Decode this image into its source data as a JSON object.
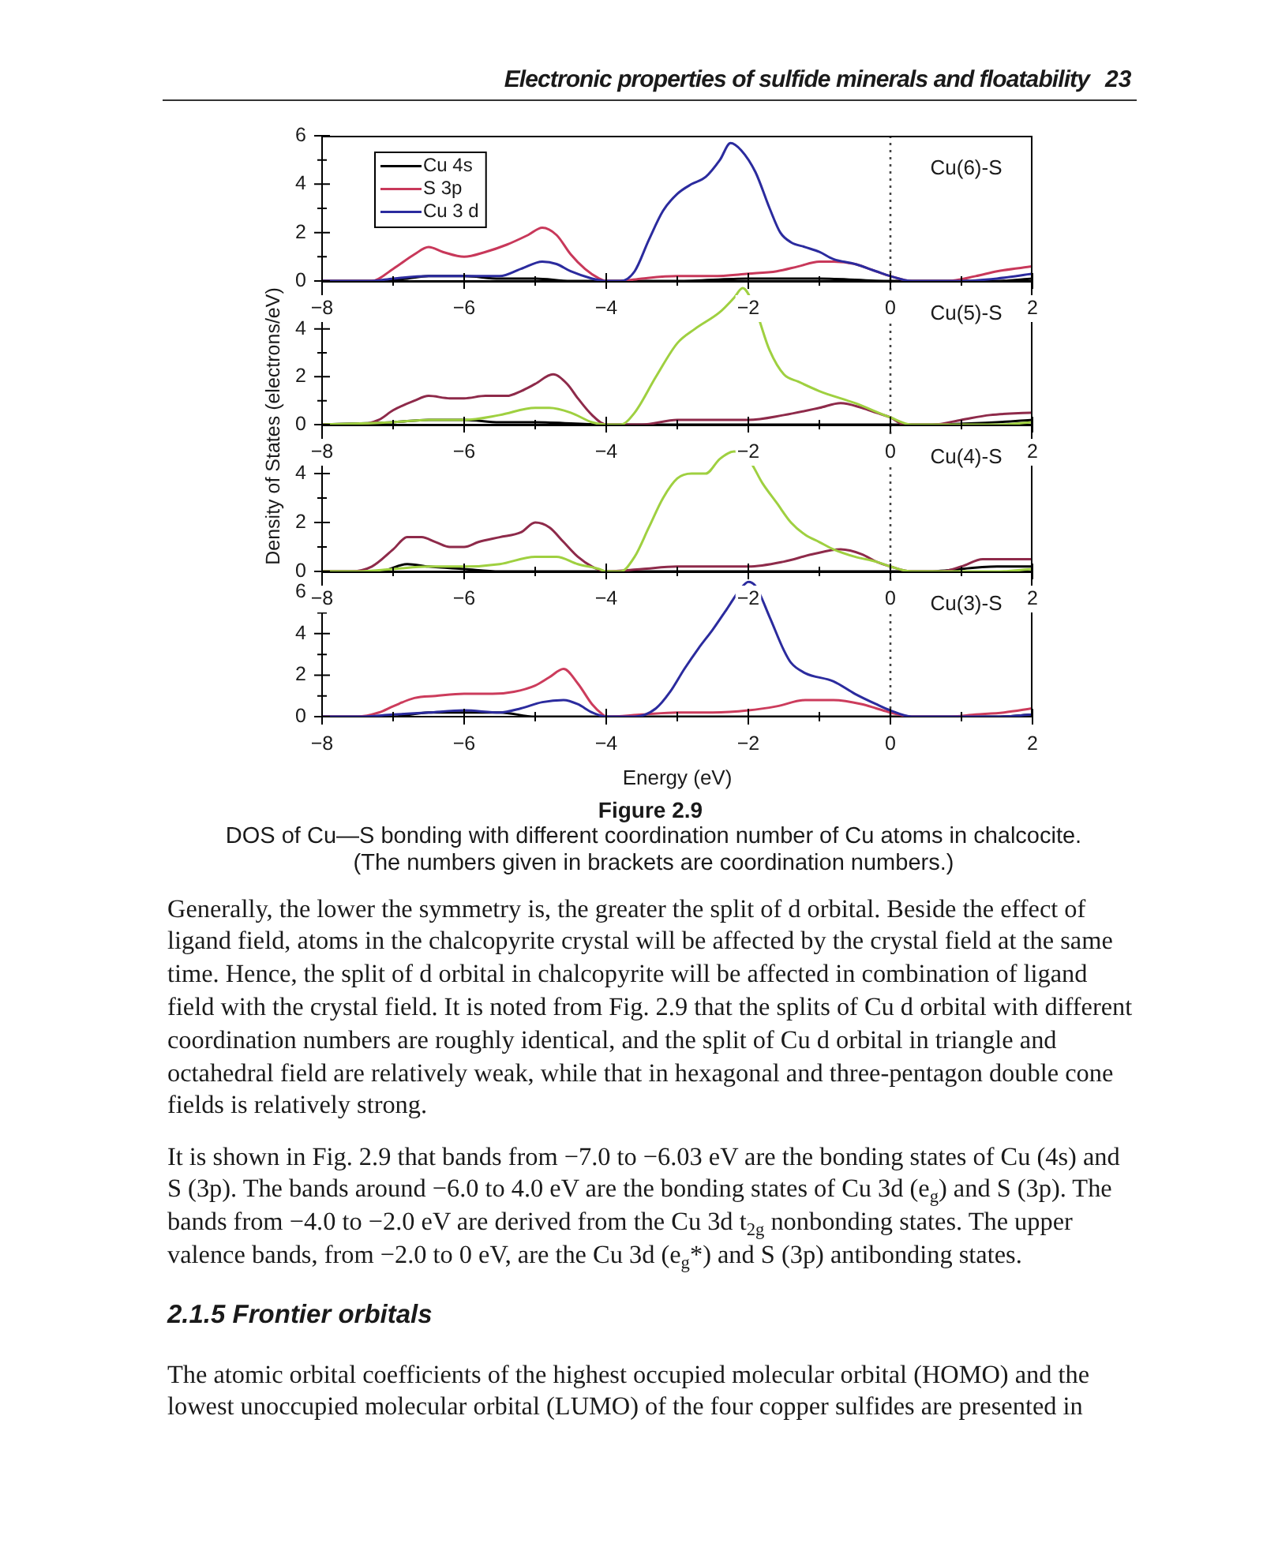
{
  "chart_data": [
    {
      "type": "line",
      "title": "Cu(6)-S",
      "annotations": [
        "Electronic properties of sulfide minerals and floatability",
        "23"
      ],
      "xlim": [
        -8,
        2
      ],
      "xticks": [
        -8,
        {
          "value": -7,
          "label": null
        },
        -6,
        {
          "value": -5,
          "label": null
        },
        -4,
        {
          "value": -3,
          "label": null
        },
        -2,
        {
          "value": -1,
          "label": null
        },
        0,
        {
          "value": 1,
          "label": null
        },
        2
      ],
      "ylim": [
        0,
        6
      ],
      "yticks": [
        0,
        {
          "value": 1,
          "label": null
        },
        2,
        {
          "value": 3,
          "label": null
        },
        4,
        {
          "value": 5,
          "label": null
        },
        6
      ],
      "legend": "top left",
      "ref_lines": [
        {
          "axis": "x",
          "value": 0,
          "color": "#444444",
          "line_style": "dotted"
        }
      ],
      "series": [
        {
          "name": "Cu 4s",
          "color": "#000000",
          "x": [
            -8,
            -7.2,
            -6.8,
            -6.5,
            -6,
            -5.5,
            -5,
            -4.5,
            -4,
            -3,
            -2,
            -1,
            0,
            0.5,
            1.5,
            2
          ],
          "values": [
            0,
            0,
            0.1,
            0.2,
            0.2,
            0.1,
            0.1,
            0,
            0,
            0,
            0.1,
            0.1,
            0,
            0,
            0,
            0.1
          ]
        },
        {
          "name": "S 3p",
          "color": "#c8385a",
          "x": [
            -8,
            -7.5,
            -7.3,
            -7,
            -6.7,
            -6.5,
            -6.3,
            -6,
            -5.7,
            -5.4,
            -5.1,
            -4.9,
            -4.7,
            -4.5,
            -4.3,
            -4.1,
            -4,
            -3.8,
            -3.5,
            -3,
            -2.5,
            -2,
            -1.6,
            -1.3,
            -1,
            -0.8,
            -0.5,
            -0.3,
            0,
            0.3,
            0.8,
            1.2,
            1.5,
            2
          ],
          "values": [
            0,
            0,
            0,
            0.5,
            1.1,
            1.4,
            1.2,
            1.0,
            1.2,
            1.5,
            1.9,
            2.2,
            1.9,
            1.1,
            0.5,
            0.1,
            0,
            0,
            0.1,
            0.2,
            0.2,
            0.3,
            0.4,
            0.6,
            0.8,
            0.8,
            0.7,
            0.5,
            0.2,
            0,
            0,
            0.2,
            0.4,
            0.6
          ]
        },
        {
          "name": "Cu 3 d",
          "color": "#2b2b9e",
          "x": [
            -8,
            -7.3,
            -7,
            -6.5,
            -6,
            -5.5,
            -5.2,
            -4.9,
            -4.7,
            -4.5,
            -4.2,
            -4,
            -3.8,
            -3.6,
            -3.4,
            -3.2,
            -3,
            -2.8,
            -2.6,
            -2.4,
            -2.25,
            -2.1,
            -1.9,
            -1.7,
            -1.55,
            -1.4,
            -1.2,
            -1,
            -0.8,
            -0.5,
            -0.2,
            0,
            0.3,
            1,
            1.5,
            2
          ],
          "values": [
            0,
            0,
            0.1,
            0.2,
            0.2,
            0.2,
            0.5,
            0.8,
            0.7,
            0.4,
            0.1,
            0,
            0,
            0.4,
            1.7,
            2.9,
            3.6,
            4.0,
            4.3,
            5.0,
            5.7,
            5.4,
            4.5,
            3.0,
            2.0,
            1.6,
            1.4,
            1.2,
            0.9,
            0.7,
            0.4,
            0.2,
            0,
            0,
            0.1,
            0.3
          ]
        }
      ]
    },
    {
      "type": "line",
      "title": "Cu(5)-S",
      "ylabel": "Density of States (electrons/eV)",
      "xlim": [
        -8,
        2
      ],
      "xticks": [
        -8,
        {
          "value": -7,
          "label": null
        },
        -6,
        {
          "value": -5,
          "label": null
        },
        -4,
        {
          "value": -3,
          "label": null
        },
        -2,
        {
          "value": -1,
          "label": null
        },
        0,
        {
          "value": 1,
          "label": null
        },
        2
      ],
      "ylim": [
        0,
        6
      ],
      "yticks": [
        0,
        {
          "value": 1,
          "label": null
        },
        2,
        {
          "value": 3,
          "label": null
        },
        4,
        {
          "value": 5,
          "label": null
        }
      ],
      "ref_lines": [
        {
          "axis": "x",
          "value": 0,
          "color": "#444444",
          "line_style": "dotted"
        }
      ],
      "series": [
        {
          "color": "#000000",
          "x": [
            -8,
            -7,
            -6.5,
            -6,
            -5.5,
            -5,
            -4,
            -3,
            -2,
            -1,
            0,
            0.5,
            1.5,
            2
          ],
          "values": [
            0,
            0.1,
            0.2,
            0.2,
            0.1,
            0.1,
            0,
            0,
            0,
            0,
            0,
            0,
            0.1,
            0.2
          ]
        },
        {
          "color": "#8e2a4a",
          "x": [
            -8,
            -7.5,
            -7.2,
            -7,
            -6.7,
            -6.5,
            -6.2,
            -6,
            -5.7,
            -5.4,
            -5.2,
            -5,
            -4.75,
            -4.55,
            -4.4,
            -4.2,
            -4,
            -3.5,
            -3,
            -2.5,
            -2,
            -1.5,
            -1,
            -0.7,
            -0.4,
            -0.2,
            0,
            0.2,
            0.6,
            1,
            1.4,
            2
          ],
          "values": [
            0,
            0,
            0.2,
            0.6,
            1.0,
            1.2,
            1.1,
            1.1,
            1.2,
            1.2,
            1.4,
            1.7,
            2.1,
            1.7,
            1.1,
            0.4,
            0,
            0,
            0.2,
            0.2,
            0.2,
            0.4,
            0.7,
            0.9,
            0.7,
            0.5,
            0.3,
            0,
            0,
            0.2,
            0.4,
            0.5
          ]
        },
        {
          "color": "#9fd040",
          "x": [
            -8,
            -7,
            -6.5,
            -6,
            -5.5,
            -5,
            -4.8,
            -4.5,
            -4.2,
            -4,
            -3.8,
            -3.6,
            -3.3,
            -3,
            -2.75,
            -2.4,
            -2.2,
            -2.08,
            -1.9,
            -1.7,
            -1.5,
            -1.3,
            -1,
            -0.5,
            0,
            0.3,
            1,
            1.5,
            2
          ],
          "values": [
            0,
            0.1,
            0.2,
            0.2,
            0.4,
            0.7,
            0.7,
            0.5,
            0.1,
            0,
            0,
            0.5,
            2.0,
            3.4,
            4.0,
            4.7,
            5.3,
            5.7,
            4.8,
            3.1,
            2.1,
            1.8,
            1.4,
            0.9,
            0.3,
            0,
            0,
            0,
            0.1
          ]
        }
      ]
    },
    {
      "type": "line",
      "title": "Cu(4)-S",
      "xlim": [
        -8,
        2
      ],
      "xticks": [
        -8,
        {
          "value": -7,
          "label": null
        },
        -6,
        {
          "value": -5,
          "label": null
        },
        -4,
        {
          "value": -3,
          "label": null
        },
        -2,
        {
          "value": -1,
          "label": null
        },
        0,
        {
          "value": 1,
          "label": null
        },
        2
      ],
      "ylim": [
        0,
        6
      ],
      "yticks": [
        0,
        {
          "value": 1,
          "label": null
        },
        2,
        {
          "value": 3,
          "label": null
        },
        4,
        {
          "value": 5,
          "label": null
        }
      ],
      "ref_lines": [
        {
          "axis": "x",
          "value": 0,
          "color": "#444444",
          "line_style": "dotted"
        }
      ],
      "series": [
        {
          "color": "#000000",
          "x": [
            -8,
            -7.2,
            -6.8,
            -6.5,
            -6,
            -5.5,
            -5,
            -4,
            -3,
            -2,
            -1,
            0,
            0.5,
            1.5,
            2
          ],
          "values": [
            0,
            0,
            0.3,
            0.2,
            0.1,
            0,
            0,
            0,
            0,
            0,
            0,
            0,
            0,
            0.2,
            0.2
          ]
        },
        {
          "color": "#8e2a4a",
          "x": [
            -8,
            -7.6,
            -7.3,
            -7,
            -6.8,
            -6.6,
            -6.4,
            -6.2,
            -6,
            -5.8,
            -5.5,
            -5.2,
            -5,
            -4.8,
            -4.6,
            -4.4,
            -4.2,
            -4,
            -3.5,
            -3,
            -2.5,
            -2,
            -1.5,
            -1.1,
            -0.7,
            -0.4,
            -0.2,
            0,
            0.3,
            0.7,
            1,
            1.3,
            1.6,
            2
          ],
          "values": [
            0,
            0,
            0.2,
            0.9,
            1.4,
            1.4,
            1.2,
            1.0,
            1.0,
            1.2,
            1.4,
            1.6,
            2.0,
            1.8,
            1.2,
            0.6,
            0.2,
            0,
            0.1,
            0.2,
            0.2,
            0.2,
            0.4,
            0.7,
            0.9,
            0.7,
            0.4,
            0.2,
            0,
            0,
            0.2,
            0.5,
            0.5,
            0.5
          ]
        },
        {
          "color": "#9fd040",
          "x": [
            -8,
            -7.5,
            -7,
            -6.5,
            -6,
            -5.5,
            -5,
            -4.7,
            -4.4,
            -4.1,
            -4,
            -3.8,
            -3.6,
            -3.4,
            -3.2,
            -3,
            -2.8,
            -2.6,
            -2.4,
            -2.2,
            -2,
            -1.8,
            -1.6,
            -1.4,
            -1.2,
            -1,
            -0.8,
            -0.5,
            -0.2,
            0,
            0.3,
            1,
            1.5,
            2
          ],
          "values": [
            0,
            0,
            0.1,
            0.2,
            0.2,
            0.3,
            0.6,
            0.6,
            0.3,
            0.1,
            0,
            0,
            0.6,
            1.8,
            3.0,
            3.8,
            4.0,
            4.0,
            4.6,
            4.9,
            4.6,
            3.6,
            2.8,
            2.0,
            1.5,
            1.2,
            0.9,
            0.6,
            0.4,
            0.2,
            0,
            0,
            0,
            0.1
          ]
        }
      ]
    },
    {
      "type": "line",
      "title": "Cu(3)-S",
      "xlabel": "Energy (eV)",
      "annotations": [
        "Figure 2.9",
        "DOS of Cu—S bonding with different coordination number of Cu atoms in chalcocite.",
        "(The numbers given in brackets are coordination numbers.)",
        "Generally, the lower the symmetry is, the greater the split of d orbital. Beside the effect of ligand field, atoms in the chalcopyrite crystal will be affected by the crystal field at the same time. Hence, the split of d orbital in chalcopyrite will be affected in combination of ligand field with the crystal field. It is noted from Fig. 2.9 that the splits of Cu d orbital with different coordination numbers are roughly identical, and the split of Cu d orbital in triangle and octahedral field are relatively weak, while that in hexagonal and three-pentagon double cone fields is relatively strong.",
        "It is shown in Fig. 2.9 that bands from −7.0 to −6.03 eV are the bonding states of Cu (4s) and S (3p). The bands around −6.0 to 4.0 eV are the bonding states of Cu 3d (e$_{g}$) and S (3p). The bands from −4.0 to −2.0 eV are derived from the Cu 3d t$_{2g}$ nonbonding states. The upper valence bands, from −2.0 to 0 eV, are the Cu 3d (e$_{g}$*) and S (3p) antibonding states.",
        "2.1.5 Frontier orbitals",
        "The atomic orbital coefficients of the highest occupied molecular orbital (HOMO) and the lowest unoccupied molecular orbital (LUMO) of the four copper sulfides are presented in"
      ],
      "xlim": [
        -8,
        2
      ],
      "xticks": [
        -8,
        {
          "value": -7,
          "label": null
        },
        -6,
        {
          "value": -5,
          "label": null
        },
        -4,
        {
          "value": -3,
          "label": null
        },
        -2,
        {
          "value": -1,
          "label": null
        },
        0,
        {
          "value": 1,
          "label": null
        },
        2
      ],
      "ylim": [
        0,
        7
      ],
      "yticks": [
        0,
        {
          "value": 1,
          "label": null
        },
        2,
        {
          "value": 3,
          "label": null
        },
        4,
        {
          "value": 5,
          "label": null
        },
        6
      ],
      "ref_lines": [
        {
          "axis": "x",
          "value": 0,
          "color": "#444444",
          "line_style": "dotted"
        }
      ],
      "series": [
        {
          "color": "#000000",
          "x": [
            -8,
            -7,
            -6.5,
            -6,
            -5.5,
            -5,
            -4.5,
            -4,
            -3,
            -2,
            -1,
            0,
            0.5,
            1.5,
            2
          ],
          "values": [
            0,
            0,
            0.2,
            0.2,
            0.2,
            0,
            0,
            0,
            0,
            0,
            0,
            0,
            0,
            0,
            0.1
          ]
        },
        {
          "color": "#cc3c5c",
          "x": [
            -8,
            -7.5,
            -7.2,
            -7,
            -6.7,
            -6.4,
            -6,
            -5.6,
            -5.3,
            -5,
            -4.8,
            -4.6,
            -4.4,
            -4.2,
            -4.05,
            -4,
            -3.5,
            -3,
            -2.5,
            -2,
            -1.6,
            -1.2,
            -0.8,
            -0.4,
            -0.2,
            0,
            0.3,
            0.8,
            1.2,
            1.6,
            2
          ],
          "values": [
            0,
            0,
            0.2,
            0.5,
            0.9,
            1.0,
            1.1,
            1.1,
            1.2,
            1.5,
            1.9,
            2.3,
            1.6,
            0.6,
            0.1,
            0,
            0.1,
            0.2,
            0.2,
            0.3,
            0.5,
            0.8,
            0.8,
            0.6,
            0.4,
            0.2,
            0,
            0,
            0.1,
            0.2,
            0.4
          ]
        },
        {
          "color": "#2b2b9e",
          "x": [
            -8,
            -7.5,
            -7,
            -6.5,
            -6,
            -5.5,
            -5.2,
            -4.9,
            -4.6,
            -4.4,
            -4.2,
            -4,
            -3.6,
            -3.3,
            -3.1,
            -2.9,
            -2.7,
            -2.5,
            -2.3,
            -2.1,
            -2,
            -1.9,
            -1.7,
            -1.5,
            -1.4,
            -1.2,
            -0.8,
            -0.5,
            -0.2,
            0,
            0.3,
            1,
            1.5,
            2
          ],
          "values": [
            0,
            0,
            0.1,
            0.2,
            0.3,
            0.2,
            0.4,
            0.7,
            0.8,
            0.6,
            0.2,
            0,
            0,
            0.4,
            1.2,
            2.3,
            3.3,
            4.2,
            5.2,
            6.2,
            6.5,
            6.3,
            4.8,
            3.2,
            2.6,
            2.1,
            1.7,
            1.1,
            0.6,
            0.3,
            0,
            0,
            0,
            0.1
          ]
        }
      ]
    }
  ]
}
